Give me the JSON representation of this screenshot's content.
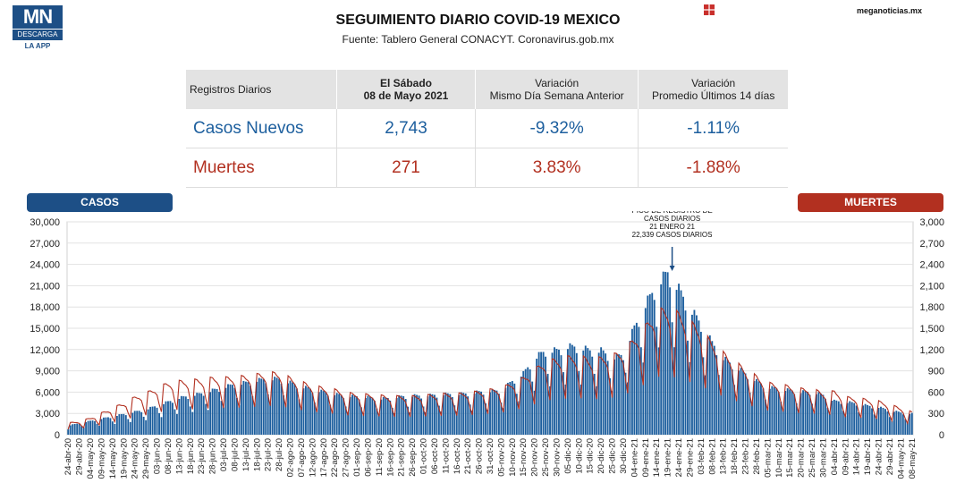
{
  "logo": {
    "mark": "MN",
    "line1": "DESCARGA",
    "line2": "LA APP"
  },
  "site": "meganoticias.mx",
  "title": "SEGUIMIENTO DIARIO COVID-19 MEXICO",
  "subtitle": "Fuente: Tablero General CONACYT. Coronavirus.gob.mx",
  "table": {
    "h0": "Registros Diarios",
    "h1a": "El Sábado",
    "h1b": "08 de Mayo 2021",
    "h2a": "Variación",
    "h2b": "Mismo Día Semana Anterior",
    "h3a": "Variación",
    "h3b": "Promedio Últimos 14 días",
    "casos": {
      "label": "Casos Nuevos",
      "value": "2,743",
      "var_semana": "-9.32%",
      "var_prom": "-1.11%"
    },
    "muertes": {
      "label": "Muertes",
      "value": "271",
      "var_semana": "3.83%",
      "var_prom": "-1.88%"
    }
  },
  "pills": {
    "casos": "CASOS",
    "muertes": "MUERTES"
  },
  "colors": {
    "casos": "#1d5f9e",
    "muertes": "#b23020",
    "brand": "#1d4f86"
  },
  "chart_data": {
    "type": "bar",
    "title": "",
    "x_labels": [
      "24-abr-20",
      "29-abr-20",
      "04-may-20",
      "09-may-20",
      "14-may-20",
      "19-may-20",
      "24-may-20",
      "29-may-20",
      "03-jun-20",
      "08-jun-20",
      "13-jun-20",
      "18-jun-20",
      "23-jun-20",
      "28-jun-20",
      "03-jul-20",
      "08-jul-20",
      "13-jul-20",
      "18-jul-20",
      "23-jul-20",
      "28-jul-20",
      "02-ago-20",
      "07-ago-20",
      "12-ago-20",
      "17-ago-20",
      "22-ago-20",
      "27-ago-20",
      "01-sep-20",
      "06-sep-20",
      "11-sep-20",
      "16-sep-20",
      "21-sep-20",
      "26-sep-20",
      "01-oct-20",
      "06-oct-20",
      "11-oct-20",
      "16-oct-20",
      "21-oct-20",
      "26-oct-20",
      "31-oct-20",
      "05-nov-20",
      "10-nov-20",
      "15-nov-20",
      "20-nov-20",
      "25-nov-20",
      "30-nov-20",
      "05-dic-20",
      "10-dic-20",
      "15-dic-20",
      "20-dic-20",
      "25-dic-20",
      "30-dic-20",
      "04-ene-21",
      "09-ene-21",
      "14-ene-21",
      "19-ene-21",
      "24-ene-21",
      "29-ene-21",
      "03-feb-21",
      "08-feb-21",
      "13-feb-21",
      "18-feb-21",
      "23-feb-21",
      "28-feb-21",
      "05-mar-21",
      "10-mar-21",
      "15-mar-21",
      "20-mar-21",
      "25-mar-21",
      "30-mar-21",
      "04-abr-21",
      "09-abr-21",
      "14-abr-21",
      "19-abr-21",
      "24-abr-21",
      "29-abr-21",
      "04-may-21",
      "08-may-21"
    ],
    "series": [
      {
        "name": "CASOS",
        "axis": "left",
        "type": "bar",
        "values": [
          1200,
          1500,
          1800,
          2100,
          2400,
          2700,
          3000,
          3300,
          3800,
          4300,
          4800,
          5100,
          5400,
          5800,
          6200,
          6600,
          6800,
          7100,
          7300,
          7300,
          6800,
          6300,
          5900,
          5600,
          5300,
          5100,
          5000,
          4900,
          4700,
          4800,
          5000,
          5100,
          5100,
          5200,
          5300,
          5300,
          5400,
          5600,
          5700,
          5800,
          7000,
          8000,
          10000,
          11000,
          11000,
          11500,
          11500,
          11000,
          11000,
          10000,
          10500,
          14000,
          17000,
          19500,
          21200,
          19000,
          16500,
          14500,
          12000,
          10000,
          9000,
          8000,
          7000,
          6200,
          6000,
          5800,
          5600,
          5600,
          5200,
          4400,
          4300,
          4100,
          3800,
          3600,
          3200,
          2900,
          2743
        ]
      },
      {
        "name": "MUERTES",
        "axis": "right",
        "type": "line",
        "values": [
          140,
          160,
          200,
          260,
          320,
          380,
          450,
          500,
          560,
          620,
          640,
          650,
          660,
          680,
          680,
          690,
          700,
          720,
          740,
          740,
          680,
          630,
          590,
          560,
          540,
          500,
          490,
          480,
          470,
          460,
          460,
          460,
          470,
          480,
          490,
          490,
          500,
          520,
          540,
          560,
          620,
          680,
          780,
          880,
          900,
          930,
          940,
          900,
          920,
          950,
          1000,
          1150,
          1300,
          1480,
          1500,
          1450,
          1350,
          1250,
          1100,
          980,
          880,
          780,
          700,
          620,
          600,
          580,
          550,
          550,
          500,
          520,
          450,
          440,
          420,
          400,
          360,
          320,
          271
        ]
      }
    ],
    "annotation": {
      "line1": "PICO DE REGISTRO DE",
      "line2": "CASOS DIARIOS",
      "line3": "21 ENERO 21",
      "line4": "22,339 CASOS DIARIOS",
      "date": "21-ene-21",
      "value": 22339
    },
    "left_ticks": [
      "30,000",
      "27,000",
      "24,000",
      "21,000",
      "18,000",
      "15,000",
      "12,000",
      "9,000",
      "6,000",
      "3,000",
      "0"
    ],
    "right_ticks": [
      "3,000",
      "2,700",
      "2,400",
      "2,100",
      "1,800",
      "1,500",
      "1,200",
      "900",
      "600",
      "300",
      "0"
    ],
    "left_range": [
      0,
      30000
    ],
    "right_range": [
      0,
      3000
    ],
    "grid": "horizontal"
  }
}
